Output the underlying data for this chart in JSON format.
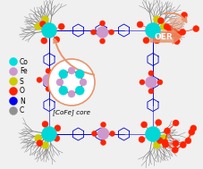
{
  "bg_color": "#e8e8e8",
  "legend_items": [
    {
      "label": "Co",
      "color": "#00dede"
    },
    {
      "label": "Fe",
      "color": "#cc99cc"
    },
    {
      "label": "S",
      "color": "#cccc00"
    },
    {
      "label": "O",
      "color": "#ff2200"
    },
    {
      "label": "N",
      "color": "#0000ee"
    },
    {
      "label": "C",
      "color": "#909090"
    }
  ],
  "core_label": "[CoFe] core",
  "arrow_color": "#e8956d",
  "oer_label": "OER",
  "figsize": [
    2.27,
    1.89
  ],
  "dpi": 100
}
